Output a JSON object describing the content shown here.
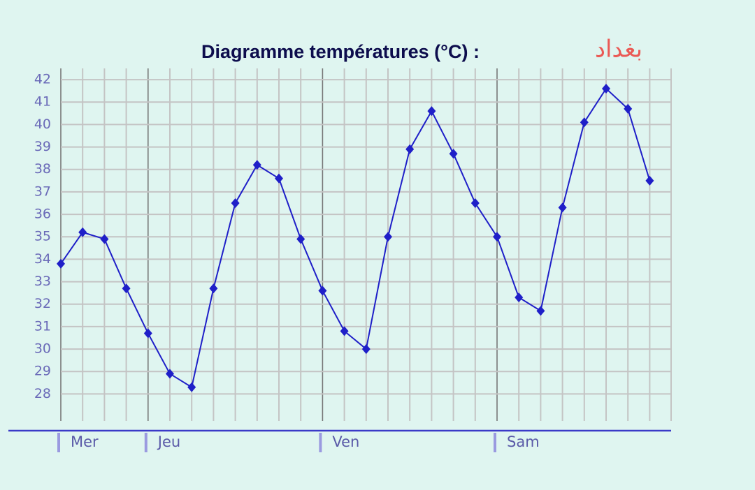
{
  "chart_data": {
    "type": "line",
    "title": "Diagramme températures (°C) :",
    "subtitle": "بغداد",
    "categories": [
      "Mer",
      null,
      null,
      null,
      "Jeu",
      null,
      null,
      null,
      null,
      null,
      null,
      null,
      "Ven",
      null,
      null,
      null,
      null,
      null,
      null,
      null,
      "Sam",
      null,
      null,
      null,
      null,
      null,
      null,
      null
    ],
    "values": [
      33.8,
      35.2,
      34.9,
      32.7,
      30.7,
      28.9,
      28.3,
      32.7,
      36.5,
      38.2,
      37.6,
      34.9,
      32.6,
      30.8,
      30.0,
      35.0,
      38.9,
      40.6,
      38.7,
      36.5,
      35.0,
      32.3,
      31.7,
      36.3,
      40.1,
      41.6,
      40.7,
      37.5
    ],
    "color": "#1f1fc8",
    "ylim": [
      26.8,
      42.5
    ],
    "yticks": [
      28,
      29,
      30,
      31,
      32,
      33,
      34,
      35,
      36,
      37,
      38,
      39,
      40,
      41,
      42
    ],
    "grid": true
  }
}
